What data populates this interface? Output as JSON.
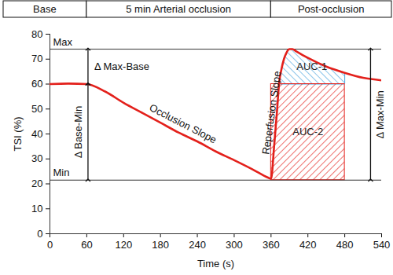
{
  "chart_data": {
    "type": "line",
    "x_label": "Time (s)",
    "y_label": "TSI (%)",
    "phases": [
      {
        "label": "Base",
        "start": 0,
        "end": 60
      },
      {
        "label": "5 min Arterial occlusion",
        "start": 60,
        "end": 360
      },
      {
        "label": "Post-occlusion",
        "start": 360,
        "end": 540
      }
    ],
    "x": [
      0,
      30,
      60,
      90,
      120,
      150,
      180,
      210,
      240,
      270,
      300,
      330,
      355,
      360,
      365,
      370,
      373,
      377,
      381,
      385,
      390,
      395,
      400,
      420,
      450,
      480,
      510,
      540
    ],
    "values": [
      60,
      60.2,
      60,
      57,
      52.5,
      48.5,
      44.5,
      40.5,
      37,
      33,
      29.5,
      25.8,
      22.5,
      22,
      35,
      50,
      60,
      66,
      70,
      72.5,
      74,
      74,
      73.3,
      70.5,
      67,
      64.5,
      62.5,
      61.5
    ],
    "color": "#e3201b",
    "xlim": [
      0,
      540
    ],
    "xticks": [
      0,
      60,
      120,
      180,
      240,
      300,
      360,
      420,
      480,
      540
    ],
    "ylim": [
      0,
      80
    ],
    "yticks": [
      0,
      10,
      20,
      30,
      40,
      50,
      60,
      70,
      80
    ],
    "grid": false,
    "reference_lines": [
      {
        "label": "Max",
        "value": 74
      },
      {
        "label": "Min",
        "value": 21.5
      }
    ],
    "intervals": [
      {
        "label": "Δ Max-Base",
        "x": 62,
        "from": 60,
        "to": 74
      },
      {
        "label": "Δ Base-Min",
        "x": 62,
        "from": 21.5,
        "to": 60
      },
      {
        "label": "Δ Max-Min",
        "x": 522,
        "from": 21.5,
        "to": 74
      }
    ],
    "slopes": [
      {
        "label": "Occlusion Slope",
        "from": 60,
        "to": 360
      },
      {
        "label": "Reperfusion Slope",
        "from": 360,
        "to": 390
      }
    ],
    "areas": [
      {
        "label": "AUC-1",
        "start": 373,
        "end": 480,
        "base": 60,
        "color": "#4aa3df"
      },
      {
        "label": "AUC-2",
        "start": 360,
        "end": 480,
        "base": 21.5,
        "top": 60,
        "color": "#e3201b"
      }
    ]
  }
}
